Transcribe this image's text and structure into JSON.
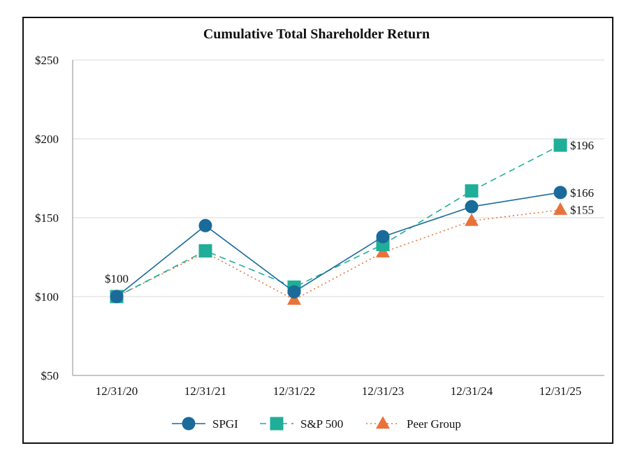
{
  "chart_data": {
    "type": "line",
    "title": "Cumulative Total Shareholder Return",
    "xlabel": "",
    "ylabel": "",
    "categories": [
      "12/31/20",
      "12/31/21",
      "12/31/22",
      "12/31/23",
      "12/31/24",
      "12/31/25"
    ],
    "ylim": [
      50,
      250
    ],
    "yticks": [
      50,
      100,
      150,
      200,
      250
    ],
    "ytick_labels": [
      "$50",
      "$100",
      "$150",
      "$200",
      "$250"
    ],
    "grid": "horizontal",
    "legend_position": "bottom",
    "series": [
      {
        "name": "SPGI",
        "values": [
          100,
          145,
          103,
          138,
          157,
          166
        ],
        "color": "#1a6a9a",
        "line_style": "solid",
        "marker": "circle"
      },
      {
        "name": "S&P 500",
        "values": [
          100,
          129,
          106,
          133,
          167,
          196
        ],
        "color": "#1fae98",
        "line_style": "dashed",
        "marker": "square"
      },
      {
        "name": "Peer Group",
        "values": [
          100,
          128,
          98,
          128,
          148,
          155
        ],
        "color": "#e8733a",
        "line_style": "dotted",
        "marker": "triangle"
      }
    ],
    "annotations": [
      {
        "text": "$100",
        "category": "12/31/20",
        "value": 100,
        "anchor": "above"
      },
      {
        "text": "$196",
        "category": "12/31/25",
        "value": 196,
        "anchor": "right"
      },
      {
        "text": "$166",
        "category": "12/31/25",
        "value": 166,
        "anchor": "right"
      },
      {
        "text": "$155",
        "category": "12/31/25",
        "value": 155,
        "anchor": "right"
      }
    ]
  }
}
